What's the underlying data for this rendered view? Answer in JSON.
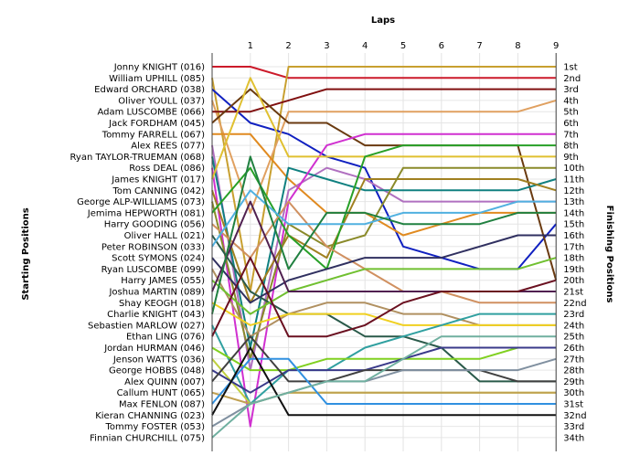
{
  "chart_data": {
    "type": "line",
    "title": "",
    "xlabel": "Laps",
    "ylabel_left": "Starting Positions",
    "ylabel_right": "Finishing Positions",
    "x_ticks": [
      1,
      2,
      3,
      4,
      5,
      6,
      7,
      8,
      9
    ],
    "xlim": [
      0,
      9
    ],
    "ylim": [
      1,
      34
    ],
    "grid": true,
    "drivers": [
      "Jonny KNIGHT (016)",
      "William UPHILL (085)",
      "Edward ORCHARD (038)",
      "Oliver YOULL (037)",
      "Adam LUSCOMBE (066)",
      "Jack FORDHAM (045)",
      "Tommy FARRELL (067)",
      "Alex REES (077)",
      "Ryan TAYLOR-TRUEMAN (068)",
      "Ross DEAL (086)",
      "James KNIGHT (017)",
      "Tom CANNING (042)",
      "George ALP-WILLIAMS (073)",
      "Jemima HEPWORTH (081)",
      "Harry GOODING (056)",
      "Oliver HALL (021)",
      "Peter ROBINSON (033)",
      "Scott SYMONS (024)",
      "Ryan LUSCOMBE (099)",
      "Harry JAMES (055)",
      "Joshua MARTIN (089)",
      "Shay KEOGH (018)",
      "Charlie KNIGHT (043)",
      "Sebastien MARLOW (027)",
      "Ethan LING (076)",
      "Jordan HURMAN (046)",
      "Jenson WATTS (036)",
      "George HOBBS (048)",
      "Alex QUINN (007)",
      "Callum HUNT (065)",
      "Max FENLON (087)",
      "Kieran CHANNING (023)",
      "Tommy FOSTER (053)",
      "Finnian CHURCHILL (075)"
    ],
    "finish_labels": [
      "1st",
      "2nd",
      "3rd",
      "4th",
      "5th",
      "6th",
      "7th",
      "8th",
      "9th",
      "10th",
      "11th",
      "12th",
      "13th",
      "14th",
      "15th",
      "16th",
      "17th",
      "18th",
      "19th",
      "20th",
      "21st",
      "22nd",
      "23rd",
      "24th",
      "25th",
      "26th",
      "27th",
      "28th",
      "29th",
      "30th",
      "31st",
      "32nd",
      "33rd",
      "34th"
    ],
    "series": [
      {
        "color": "#cc1a2a",
        "values": [
          1,
          1,
          2,
          2,
          2,
          2,
          2,
          2,
          2,
          2
        ]
      },
      {
        "color": "#c8a030",
        "values": [
          2,
          21,
          1,
          1,
          1,
          1,
          1,
          1,
          1,
          1
        ]
      },
      {
        "color": "#1020c0",
        "values": [
          3,
          6,
          7,
          9,
          10,
          17,
          18,
          19,
          19,
          15
        ]
      },
      {
        "color": "#e0a060",
        "values": [
          4,
          14,
          5,
          5,
          5,
          5,
          5,
          5,
          5,
          4
        ]
      },
      {
        "color": "#801010",
        "values": [
          5,
          5,
          4,
          3,
          3,
          3,
          3,
          3,
          3,
          3
        ]
      },
      {
        "color": "#6a3a10",
        "values": [
          6,
          3,
          6,
          6,
          8,
          8,
          8,
          8,
          8,
          20
        ]
      },
      {
        "color": "#e08a20",
        "values": [
          7,
          7,
          11,
          14,
          14,
          16,
          15,
          14,
          14,
          14
        ]
      },
      {
        "color": "#b070c0",
        "values": [
          8,
          28,
          12,
          10,
          11,
          13,
          13,
          13,
          13,
          13
        ]
      },
      {
        "color": "#108080",
        "values": [
          9,
          26,
          10,
          11,
          12,
          12,
          12,
          12,
          12,
          11
        ]
      },
      {
        "color": "#d030d0",
        "values": [
          10,
          33,
          13,
          8,
          7,
          7,
          7,
          7,
          7,
          7
        ]
      },
      {
        "color": "#e0c030",
        "values": [
          11,
          2,
          9,
          9,
          9,
          9,
          9,
          9,
          9,
          9
        ]
      },
      {
        "color": "#a08020",
        "values": [
          12,
          22,
          16,
          18,
          11,
          11,
          11,
          11,
          11,
          12
        ]
      },
      {
        "color": "#8a8a2a",
        "values": [
          13,
          27,
          15,
          17,
          16,
          10,
          10,
          10,
          10,
          10
        ]
      },
      {
        "color": "#28a028",
        "values": [
          14,
          10,
          16,
          19,
          9,
          8,
          8,
          8,
          8,
          8
        ]
      },
      {
        "color": "#d09060",
        "values": [
          15,
          18,
          13,
          17,
          19,
          21,
          21,
          22,
          22,
          22
        ]
      },
      {
        "color": "#2a5a4a",
        "values": [
          16,
          21,
          23,
          23,
          25,
          25,
          26,
          29,
          29,
          29
        ]
      },
      {
        "color": "#50b0e0",
        "values": [
          17,
          12,
          15,
          15,
          15,
          14,
          14,
          14,
          13,
          13
        ]
      },
      {
        "color": "#303060",
        "values": [
          18,
          22,
          20,
          19,
          18,
          18,
          18,
          17,
          16,
          16
        ]
      },
      {
        "color": "#b09060",
        "values": [
          19,
          25,
          23,
          22,
          22,
          23,
          23,
          24,
          24,
          24
        ]
      },
      {
        "color": "#70c030",
        "values": [
          20,
          23,
          21,
          20,
          19,
          19,
          19,
          19,
          19,
          18
        ]
      },
      {
        "color": "#502050",
        "values": [
          21,
          13,
          21,
          21,
          21,
          21,
          21,
          21,
          21,
          21
        ]
      },
      {
        "color": "#f0d020",
        "values": [
          22,
          24,
          23,
          23,
          23,
          24,
          24,
          24,
          24,
          24
        ]
      },
      {
        "color": "#208040",
        "values": [
          23,
          9,
          19,
          14,
          14,
          15,
          15,
          15,
          14,
          14
        ]
      },
      {
        "color": "#30a0a0",
        "values": [
          24,
          31,
          28,
          28,
          26,
          25,
          24,
          23,
          23,
          23
        ]
      },
      {
        "color": "#6a1020",
        "values": [
          25,
          18,
          25,
          25,
          24,
          22,
          21,
          21,
          21,
          20
        ]
      },
      {
        "color": "#80d020",
        "values": [
          26,
          28,
          28,
          27,
          27,
          27,
          27,
          27,
          26,
          26
        ]
      },
      {
        "color": "#c0d040",
        "values": [
          27,
          31,
          30,
          30,
          30,
          30,
          30,
          30,
          30,
          30
        ]
      },
      {
        "color": "#3a3a8a",
        "values": [
          28,
          30,
          28,
          28,
          28,
          27,
          26,
          26,
          26,
          26
        ]
      },
      {
        "color": "#404040",
        "values": [
          29,
          25,
          29,
          29,
          28,
          28,
          28,
          28,
          29,
          29
        ]
      },
      {
        "color": "#c0a050",
        "values": [
          30,
          31,
          30,
          30,
          30,
          30,
          30,
          30,
          30,
          30
        ]
      },
      {
        "color": "#3090e0",
        "values": [
          31,
          27,
          27,
          31,
          31,
          31,
          31,
          31,
          31,
          31
        ]
      },
      {
        "color": "#101010",
        "values": [
          32,
          26,
          32,
          32,
          32,
          32,
          32,
          32,
          32,
          32
        ]
      },
      {
        "color": "#8090a0",
        "values": [
          33,
          31,
          30,
          29,
          29,
          28,
          28,
          28,
          28,
          27
        ]
      },
      {
        "color": "#70b0a0",
        "values": [
          34,
          31,
          30,
          29,
          29,
          27,
          25,
          25,
          25,
          25
        ]
      }
    ]
  }
}
